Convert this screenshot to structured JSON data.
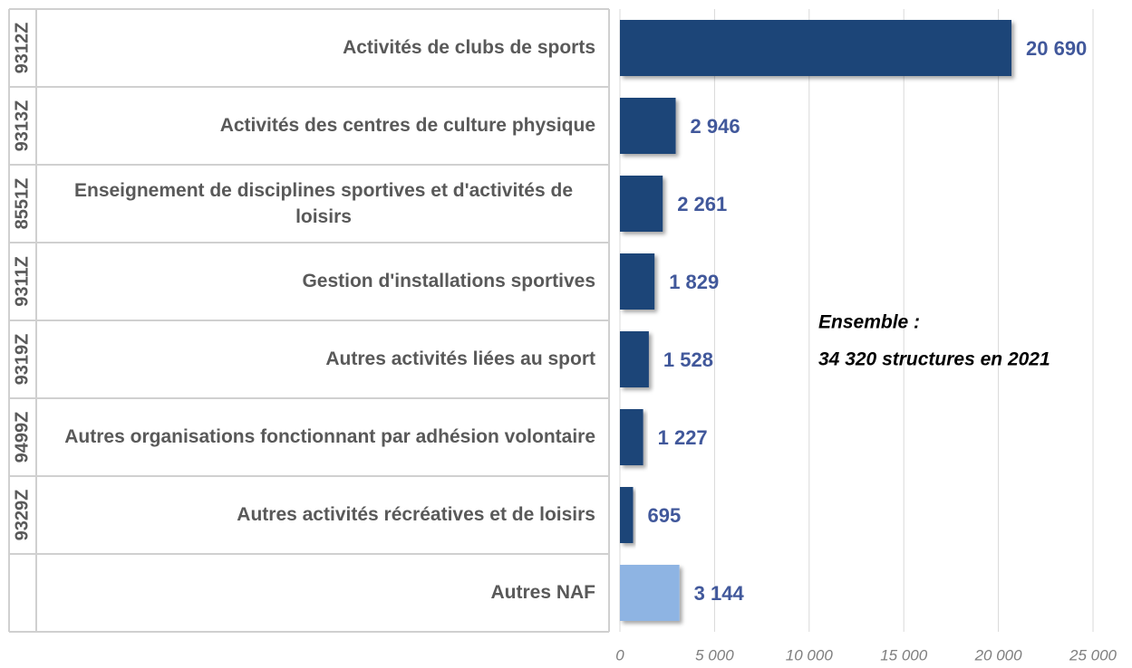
{
  "chart_data": {
    "type": "bar",
    "orientation": "horizontal",
    "codes": [
      "9312Z",
      "9313Z",
      "8551Z",
      "9311Z",
      "9319Z",
      "9499Z",
      "9329Z",
      null
    ],
    "categories": [
      "Activités de clubs de sports",
      "Activités des centres de culture physique",
      "Enseignement de disciplines sportives et d'activités de loisirs",
      "Gestion d'installations sportives",
      "Autres activités liées au sport",
      "Autres organisations fonctionnant par adhésion volontaire",
      "Autres activités récréatives et de loisirs",
      "Autres NAF"
    ],
    "values": [
      20690,
      2946,
      2261,
      1829,
      1528,
      1227,
      695,
      3144
    ],
    "value_labels": [
      "20 690",
      "2 946",
      "2 261",
      "1 829",
      "1 528",
      "1 227",
      "695",
      "3 144"
    ],
    "colors": [
      "#1f4478",
      "#1f4478",
      "#1f4478",
      "#1f4478",
      "#1f4478",
      "#1f4478",
      "#1f4478",
      "#8eb4e3"
    ],
    "xlim": [
      0,
      25000
    ],
    "xticks": [
      0,
      {
        "value": 5000,
        "label": "5 000"
      },
      {
        "value": 10000,
        "label": "10 000"
      },
      {
        "value": 15000,
        "label": "15 000"
      },
      {
        "value": 20000,
        "label": "20 000"
      },
      {
        "value": 25000,
        "label": "25 000"
      }
    ],
    "grid": true,
    "annotation": [
      "Ensemble :",
      "34 320 structures en 2021"
    ]
  }
}
